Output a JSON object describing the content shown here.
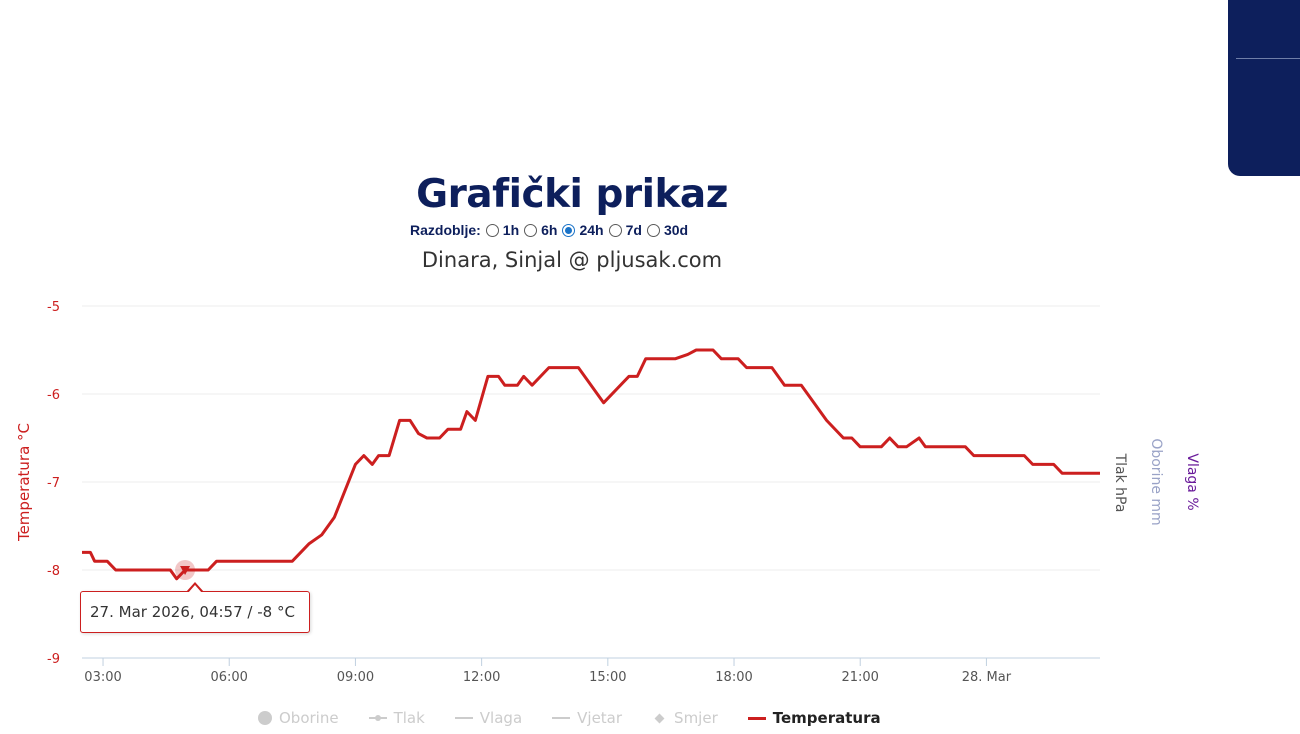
{
  "header": {
    "title": "Grafički prikaz",
    "period_label": "Razdoblje:",
    "period_options": [
      {
        "label": "1h",
        "checked": false
      },
      {
        "label": "6h",
        "checked": false
      },
      {
        "label": "24h",
        "checked": true
      },
      {
        "label": "7d",
        "checked": false
      },
      {
        "label": "30d",
        "checked": false
      }
    ],
    "subtitle": "Dinara, Sinjal @ pljusak.com"
  },
  "tooltip": {
    "text": "27. Mar 2026, 04:57 / -8 °C"
  },
  "legend": [
    {
      "label": "Oborine",
      "symbol": "dot",
      "active": false
    },
    {
      "label": "Tlak",
      "symbol": "dotline",
      "active": false
    },
    {
      "label": "Vlaga",
      "symbol": "line",
      "active": false
    },
    {
      "label": "Vjetar",
      "symbol": "line",
      "active": false
    },
    {
      "label": "Smjer",
      "symbol": "diamond",
      "active": false
    },
    {
      "label": "Temperatura",
      "symbol": "line-red",
      "active": true
    }
  ],
  "colors": {
    "temperature": "#cc1f1f",
    "title": "#0d1f5c",
    "tlak_axis": "#555555",
    "oborine_axis": "#9aa3c7",
    "vlaga_axis": "#6a1b9a"
  },
  "chart_data": {
    "type": "line",
    "title": "",
    "ylabel": "Temperatura °C",
    "ylim": [
      -9,
      -5
    ],
    "yticks": [
      -9,
      -8,
      -7,
      -6,
      -5
    ],
    "ytick_labels": [
      "-9",
      "-8",
      "-7",
      "-6",
      "-5"
    ],
    "right_axis_labels": [
      "Tlak hPa",
      "Oborine mm",
      "Vlaga %"
    ],
    "xlim": [
      2.5,
      26.7
    ],
    "xticks": [
      3,
      6,
      9,
      12,
      15,
      18,
      21,
      24
    ],
    "xtick_labels": [
      "03:00",
      "06:00",
      "09:00",
      "12:00",
      "15:00",
      "18:00",
      "21:00",
      "28. Mar"
    ],
    "grid": true,
    "legend_position": "bottom",
    "series": [
      {
        "name": "Temperatura",
        "unit": "°C",
        "points": [
          [
            2.5,
            -7.8
          ],
          [
            2.7,
            -7.8
          ],
          [
            2.8,
            -7.9
          ],
          [
            3.1,
            -7.9
          ],
          [
            3.3,
            -8.0
          ],
          [
            4.6,
            -8.0
          ],
          [
            4.75,
            -8.1
          ],
          [
            4.95,
            -8.0
          ],
          [
            5.5,
            -8.0
          ],
          [
            5.7,
            -7.9
          ],
          [
            7.5,
            -7.9
          ],
          [
            7.9,
            -7.7
          ],
          [
            8.2,
            -7.6
          ],
          [
            8.5,
            -7.4
          ],
          [
            9.0,
            -6.8
          ],
          [
            9.2,
            -6.7
          ],
          [
            9.4,
            -6.8
          ],
          [
            9.55,
            -6.7
          ],
          [
            9.8,
            -6.7
          ],
          [
            10.05,
            -6.3
          ],
          [
            10.3,
            -6.3
          ],
          [
            10.5,
            -6.45
          ],
          [
            10.7,
            -6.5
          ],
          [
            11.0,
            -6.5
          ],
          [
            11.2,
            -6.4
          ],
          [
            11.5,
            -6.4
          ],
          [
            11.65,
            -6.2
          ],
          [
            11.85,
            -6.3
          ],
          [
            12.15,
            -5.8
          ],
          [
            12.4,
            -5.8
          ],
          [
            12.55,
            -5.9
          ],
          [
            12.85,
            -5.9
          ],
          [
            13.0,
            -5.8
          ],
          [
            13.2,
            -5.9
          ],
          [
            13.6,
            -5.7
          ],
          [
            14.3,
            -5.7
          ],
          [
            14.9,
            -6.1
          ],
          [
            15.5,
            -5.8
          ],
          [
            15.7,
            -5.8
          ],
          [
            15.9,
            -5.6
          ],
          [
            16.6,
            -5.6
          ],
          [
            16.9,
            -5.55
          ],
          [
            17.1,
            -5.5
          ],
          [
            17.5,
            -5.5
          ],
          [
            17.7,
            -5.6
          ],
          [
            18.1,
            -5.6
          ],
          [
            18.3,
            -5.7
          ],
          [
            18.9,
            -5.7
          ],
          [
            19.2,
            -5.9
          ],
          [
            19.6,
            -5.9
          ],
          [
            20.2,
            -6.3
          ],
          [
            20.6,
            -6.5
          ],
          [
            20.8,
            -6.5
          ],
          [
            21.0,
            -6.6
          ],
          [
            21.5,
            -6.6
          ],
          [
            21.7,
            -6.5
          ],
          [
            21.9,
            -6.6
          ],
          [
            22.1,
            -6.6
          ],
          [
            22.4,
            -6.5
          ],
          [
            22.55,
            -6.6
          ],
          [
            23.5,
            -6.6
          ],
          [
            23.7,
            -6.7
          ],
          [
            24.9,
            -6.7
          ],
          [
            25.1,
            -6.8
          ],
          [
            25.6,
            -6.8
          ],
          [
            25.8,
            -6.9
          ],
          [
            27.85,
            -6.9
          ],
          [
            28.1,
            -7.0
          ],
          [
            28.5,
            -7.0
          ]
        ]
      }
    ],
    "highlight": {
      "x": 4.95,
      "y": -8.0,
      "label": "27. Mar 2026, 04:57"
    }
  }
}
